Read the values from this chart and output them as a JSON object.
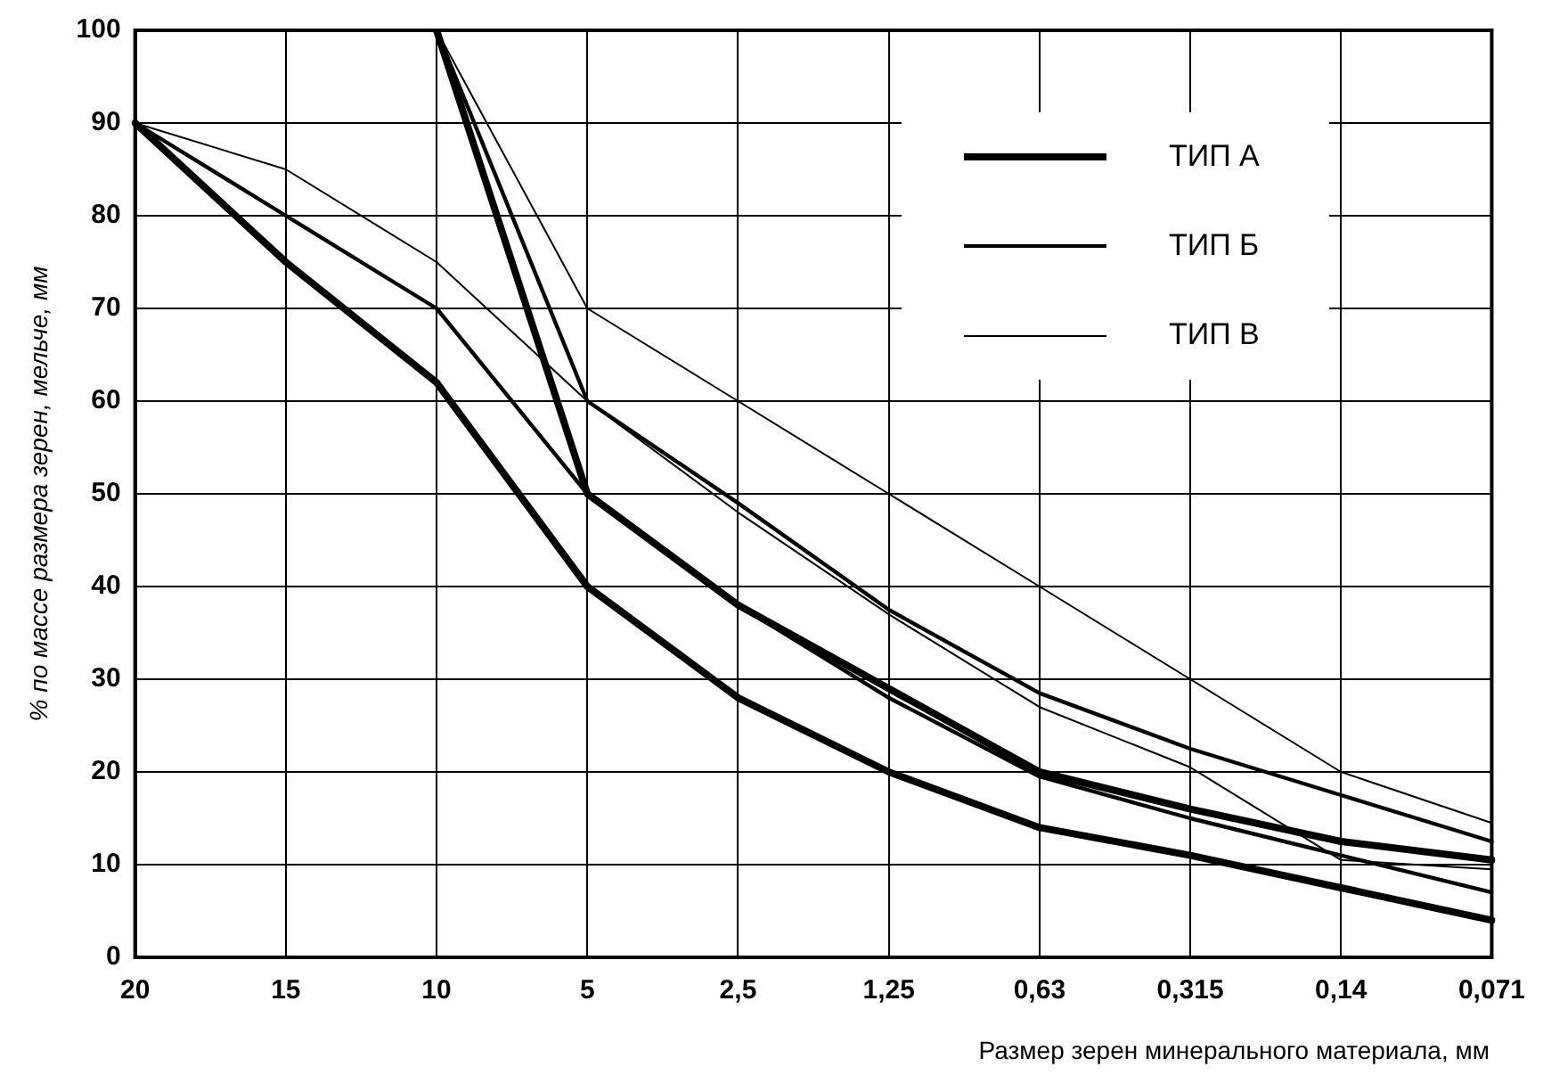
{
  "chart_data": {
    "type": "line",
    "xlabel": "Размер зерен минерального материала, мм",
    "ylabel": "% по массе размера зерен, мельче, мм",
    "categories": [
      "20",
      "15",
      "10",
      "5",
      "2,5",
      "1,25",
      "0,63",
      "0,315",
      "0,14",
      "0,071"
    ],
    "ylim": [
      0,
      100
    ],
    "yticks": [
      0,
      10,
      20,
      30,
      40,
      50,
      60,
      70,
      80,
      90,
      100
    ],
    "grid": true,
    "legend": "top right",
    "marker": "none",
    "series": [
      {
        "name": "ТИП А",
        "color": "#000000",
        "values": [
          90,
          75,
          62,
          40,
          28,
          20,
          14,
          11,
          7.5,
          4
        ]
      },
      {
        "color": "#000000",
        "values": [
          null,
          null,
          100,
          50,
          38,
          29,
          20,
          16,
          12.5,
          10.5
        ]
      },
      {
        "name": "ТИП Б",
        "color": "#000000",
        "values": [
          90,
          80,
          70,
          50,
          38,
          28,
          19.5,
          15,
          11,
          7
        ]
      },
      {
        "color": "#000000",
        "values": [
          null,
          null,
          100,
          60,
          49,
          37.5,
          28.5,
          22.5,
          17.5,
          12.5
        ]
      },
      {
        "name": "ТИП В",
        "color": "#000000",
        "values": [
          90,
          85,
          75,
          60,
          48,
          37,
          27,
          20.5,
          10.5,
          9.5
        ]
      },
      {
        "color": "#000000",
        "values": [
          null,
          null,
          100,
          70,
          60,
          50,
          40,
          30,
          20,
          14.5
        ]
      }
    ]
  }
}
